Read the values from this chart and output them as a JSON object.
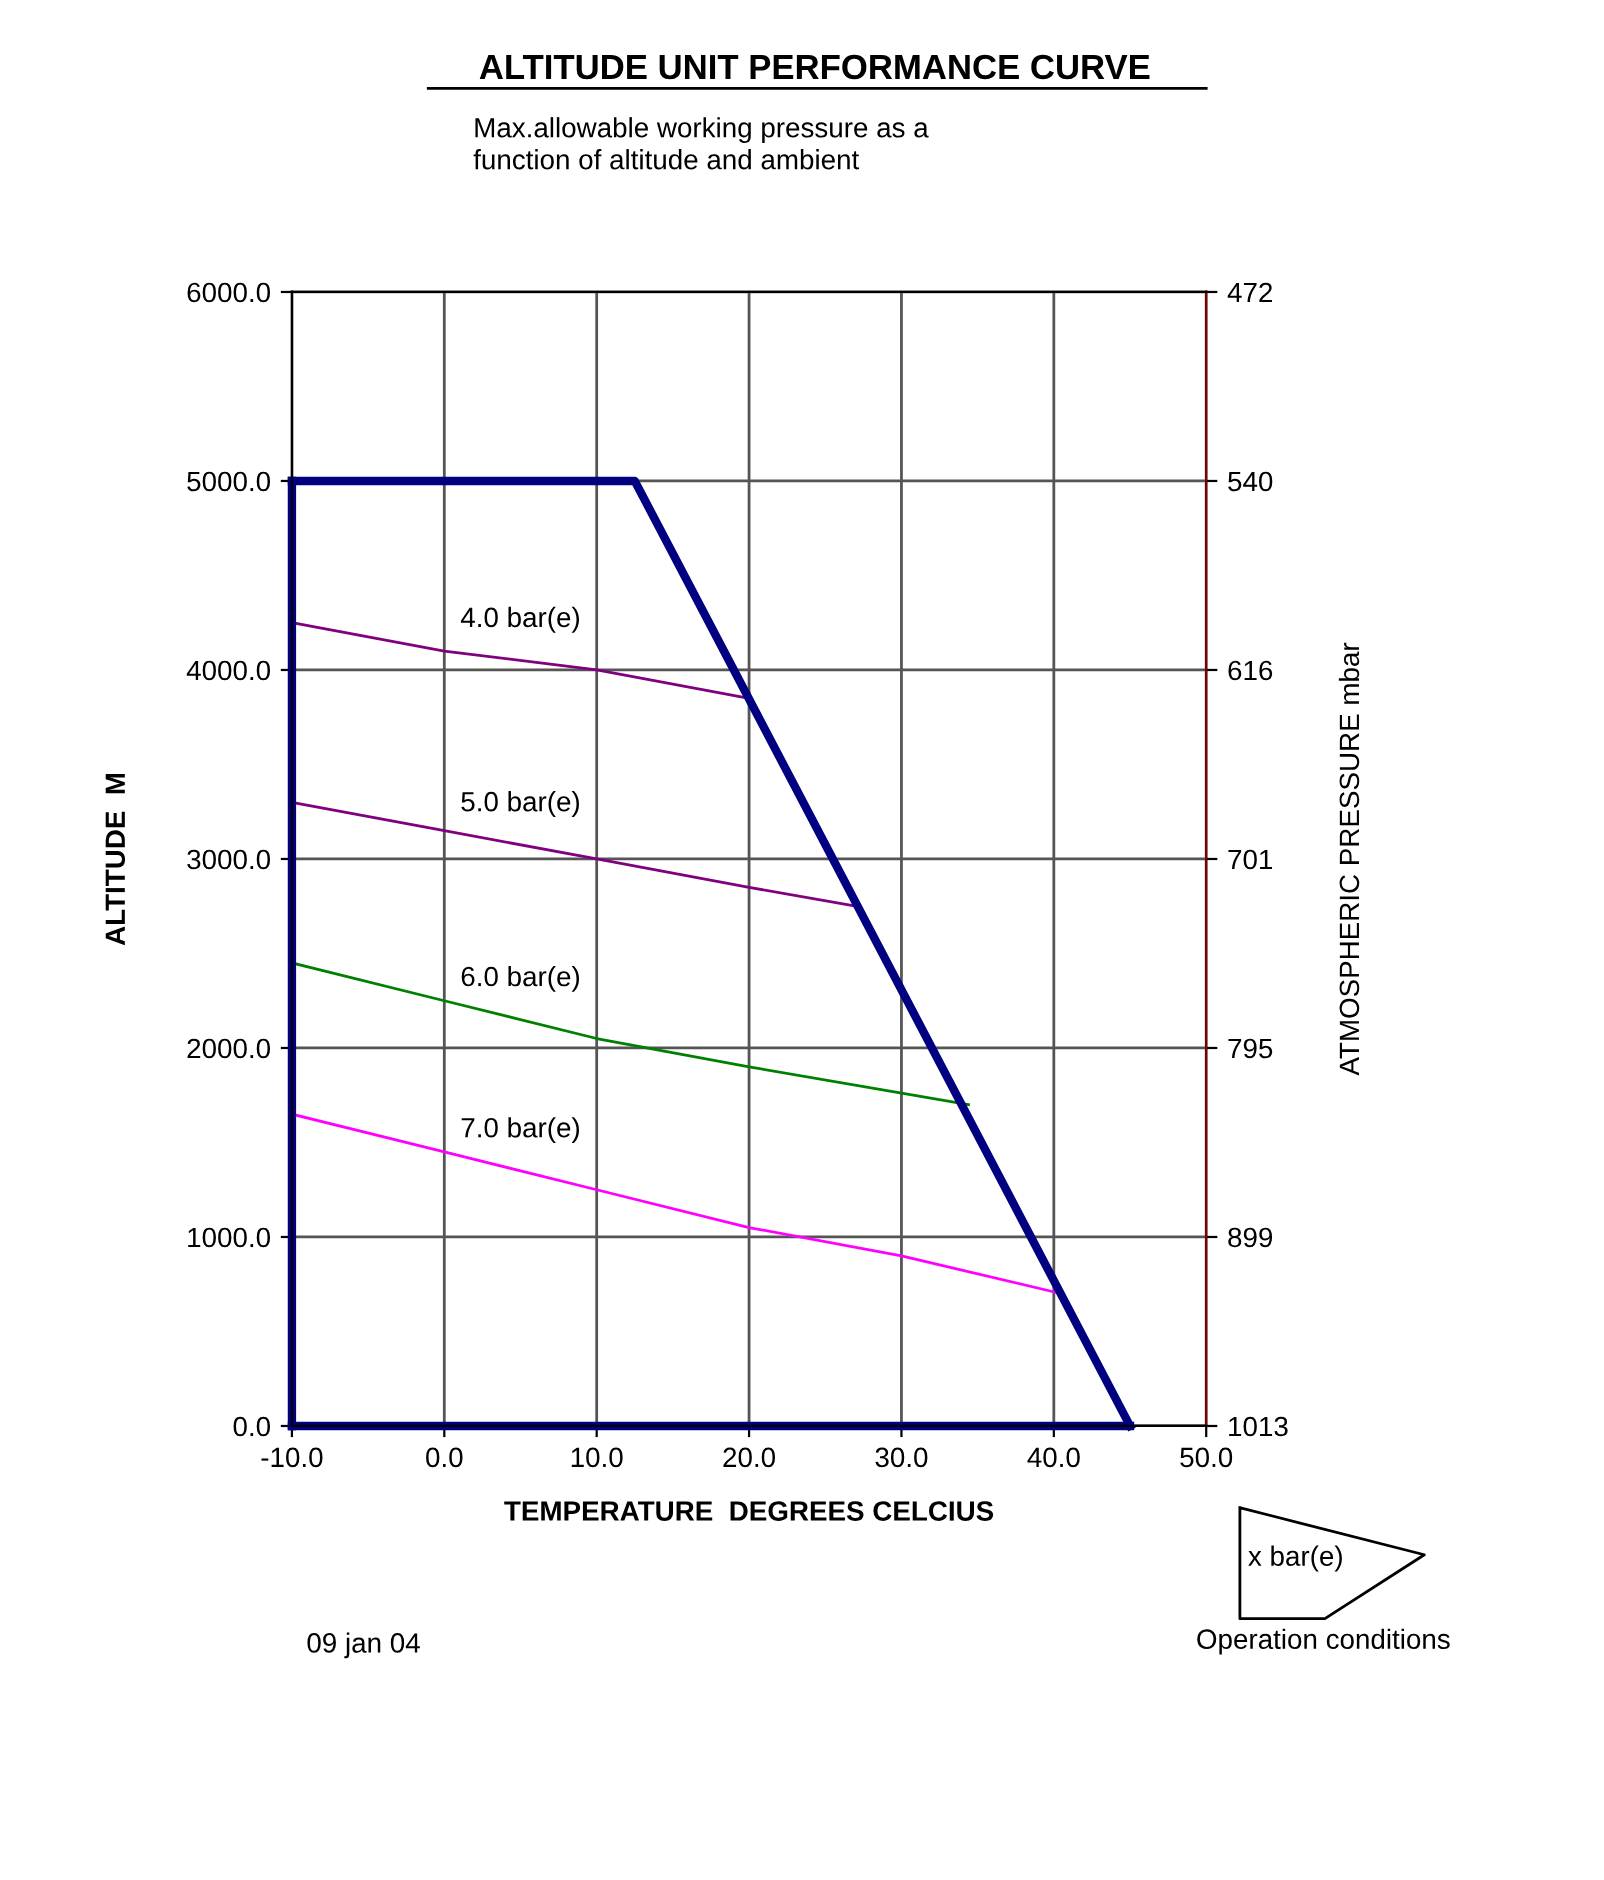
{
  "chart_data": {
    "type": "line",
    "title": "ALTITUDE UNIT PERFORMANCE CURVE",
    "subtitle": "Max.allowable working pressure as a\nfunction of altitude and ambient",
    "xlabel": "TEMPERATURE  DEGREES CELCIUS",
    "ylabel": "ALTITUDE  M",
    "y2label": "ATMOSPHERIC PRESSURE mbar",
    "xlim": [
      -10,
      50
    ],
    "xticks": [
      {
        "value": -10,
        "label": "-10.0"
      },
      {
        "value": 0,
        "label": "0.0"
      },
      {
        "value": 10,
        "label": "10.0"
      },
      {
        "value": 20,
        "label": "20.0"
      },
      {
        "value": 30,
        "label": "30.0"
      },
      {
        "value": 40,
        "label": "40.0"
      },
      {
        "value": 50,
        "label": "50.0"
      }
    ],
    "ylim": [
      0,
      6000
    ],
    "yticks": [
      {
        "value": 0,
        "label": "0.0"
      },
      {
        "value": 1000,
        "label": "1000.0"
      },
      {
        "value": 2000,
        "label": "2000.0"
      },
      {
        "value": 3000,
        "label": "3000.0"
      },
      {
        "value": 4000,
        "label": "4000.0"
      },
      {
        "value": 5000,
        "label": "5000.0"
      },
      {
        "value": 6000,
        "label": "6000.0"
      }
    ],
    "y2_categories": [
      "472",
      "540",
      "616",
      "701",
      "795",
      "899",
      "1013"
    ],
    "grid": true,
    "marker": "none",
    "line_style": "solid",
    "series": [
      {
        "color": "#000080",
        "x": [
          -10,
          -10
        ],
        "values": [
          0,
          5000
        ]
      },
      {
        "color": "#000080",
        "x": [
          -10,
          12.5,
          45
        ],
        "values": [
          5000,
          5000,
          0
        ]
      },
      {
        "color": "#000080",
        "x": [
          -10,
          45
        ],
        "values": [
          0,
          0
        ]
      },
      {
        "name": "4.0 bar(e)",
        "color": "#800080",
        "x": [
          -10,
          0,
          10,
          20
        ],
        "values": [
          4250,
          4100,
          4000,
          3850
        ]
      },
      {
        "name": "5.0 bar(e)",
        "color": "#800080",
        "x": [
          -10,
          0,
          10,
          20,
          27
        ],
        "values": [
          3300,
          3150,
          3000,
          2850,
          2750
        ]
      },
      {
        "name": "6.0 bar(e)",
        "color": "#008000",
        "x": [
          -10,
          0,
          10,
          20,
          34.4
        ],
        "values": [
          2450,
          2250,
          2050,
          1900,
          1700
        ]
      },
      {
        "name": "7.0 bar(e)",
        "color": "#ff00ff",
        "x": [
          -10,
          0,
          10,
          20,
          30,
          40.5
        ],
        "values": [
          1650,
          1450,
          1250,
          1050,
          900,
          700
        ]
      }
    ],
    "annotations": [
      "09 jan 04",
      "x bar(e)",
      "Operation conditions"
    ]
  }
}
